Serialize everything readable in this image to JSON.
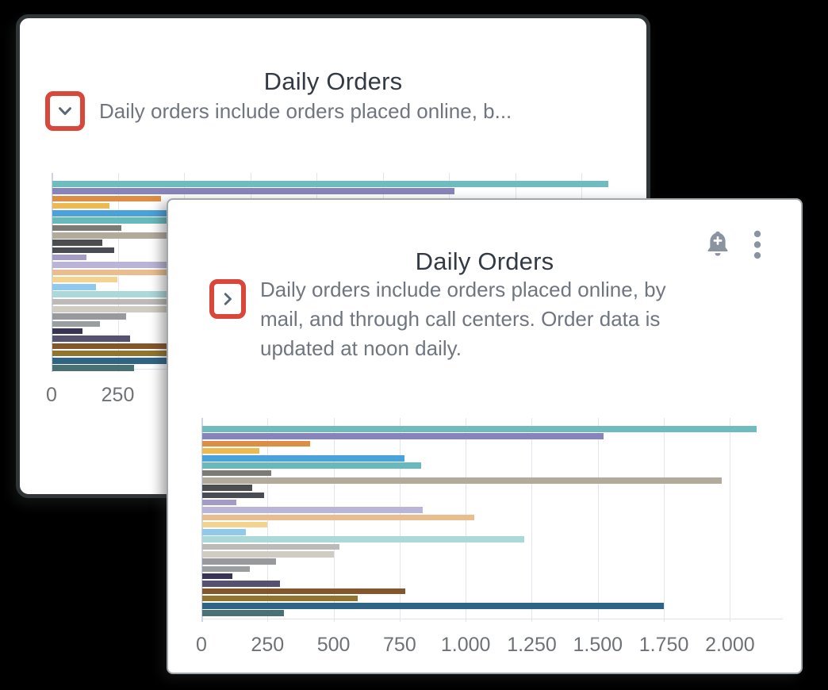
{
  "back_card": {
    "title": "Daily Orders",
    "description_truncated": "Daily orders include orders placed online, b...",
    "expander": "chevron-down"
  },
  "front_card": {
    "title": "Daily Orders",
    "description_lines": [
      "Daily orders include orders placed online, by",
      "mail, and through call centers. Order data is",
      "updated at noon daily."
    ],
    "expander": "chevron-right"
  },
  "colors": {
    "background": "#000000",
    "card_bg": "#ffffff",
    "annotation_red": "#d9473b",
    "title_text": "#333a44",
    "description_text": "#6f7680",
    "axis_label_text": "#6e7277",
    "gridline": "#e3e5ec",
    "icon_gray": "#8a93a0",
    "chevron_gray": "#5a6673",
    "back_card_border": "#303637",
    "front_card_border": "#a2a7ac"
  },
  "chart_data": {
    "type": "bar",
    "orientation": "horizontal",
    "title": "Daily Orders",
    "xlabel": "",
    "ylabel": "",
    "grid": true,
    "legend": false,
    "x_tick_labels": [
      "0",
      "250",
      "500",
      "750",
      "1.000",
      "1.250",
      "1.500",
      "1.750",
      "2.000"
    ],
    "x_tick_values": [
      0,
      250,
      500,
      750,
      1000,
      1250,
      1500,
      1750,
      2000
    ],
    "xlim": [
      0,
      2200
    ],
    "values": [
      2100,
      1520,
      410,
      215,
      765,
      830,
      260,
      1970,
      190,
      235,
      130,
      835,
      1030,
      245,
      165,
      1220,
      520,
      500,
      280,
      180,
      115,
      295,
      770,
      590,
      1750,
      310
    ],
    "bar_colors": [
      "#6fbcbe",
      "#8784bc",
      "#dd8e45",
      "#ecba50",
      "#4aa2db",
      "#68b9bc",
      "#7d7a76",
      "#b2aa9b",
      "#4b4d4f",
      "#494c52",
      "#a49cc5",
      "#bab5d8",
      "#eabd8e",
      "#f3d390",
      "#90c9ec",
      "#abd8d9",
      "#bcbab8",
      "#d0ccc3",
      "#97999c",
      "#9b9ea1",
      "#393356",
      "#55516e",
      "#84562b",
      "#917430",
      "#2e6587",
      "#497174"
    ],
    "note": "Same series rendered in both the back and front Daily Orders cards"
  }
}
